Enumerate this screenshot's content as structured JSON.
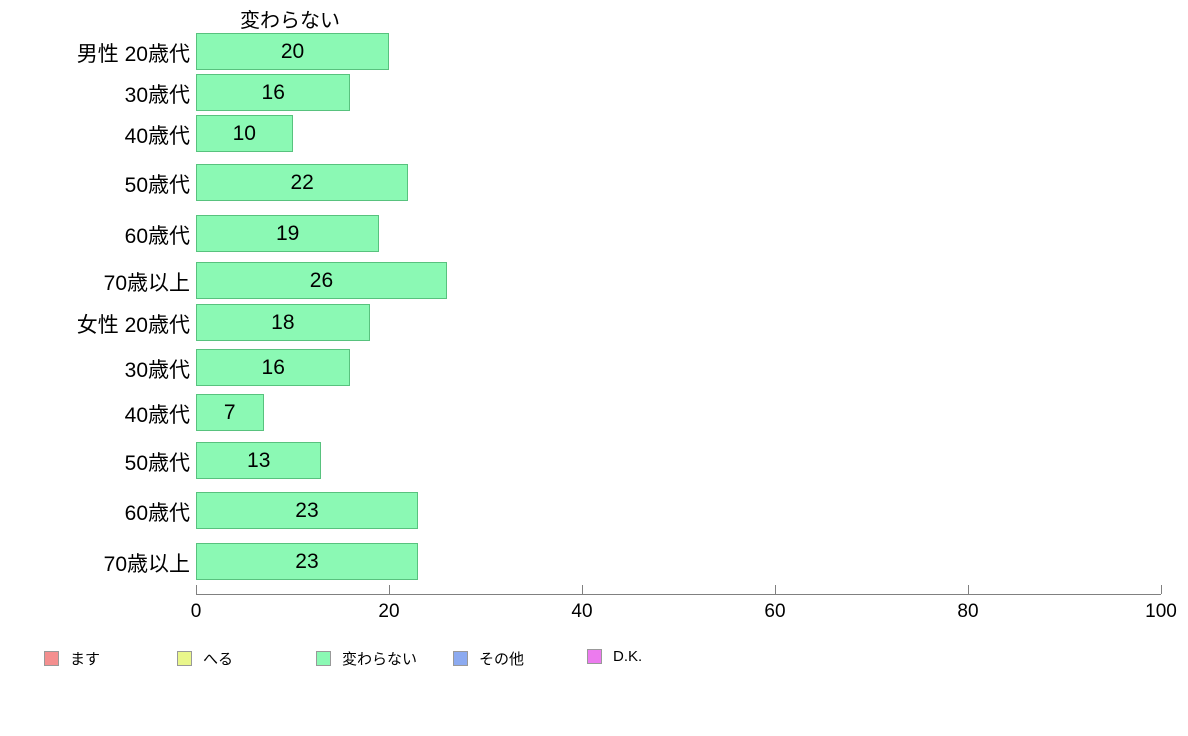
{
  "chart_data": {
    "type": "bar",
    "orientation": "horizontal",
    "title": "変わらない",
    "categories": [
      "男性 20歳代",
      "30歳代",
      "40歳代",
      "50歳代",
      "60歳代",
      "70歳以上",
      "女性 20歳代",
      "30歳代",
      "40歳代",
      "50歳代",
      "60歳代",
      "70歳以上"
    ],
    "values": [
      20,
      16,
      10,
      22,
      19,
      26,
      18,
      16,
      7,
      13,
      23,
      23
    ],
    "xlabel": "",
    "ylabel": "",
    "xlim": [
      0,
      100
    ],
    "xticks": [
      0,
      20,
      40,
      60,
      80,
      100
    ],
    "grid": false,
    "bar_fill_color": "#8bf9b4",
    "bar_border_color": "#58c27e",
    "value_labels_inside_bars": true,
    "legend_position": "bottom",
    "legend": [
      {
        "label": "ます",
        "color": "#f48f8f"
      },
      {
        "label": "へる",
        "color": "#e9f68b"
      },
      {
        "label": "変わらない",
        "color": "#8bf9b4"
      },
      {
        "label": "その他",
        "color": "#8caaf0"
      },
      {
        "label": "D.K.",
        "color": "#ec7bee"
      }
    ]
  }
}
